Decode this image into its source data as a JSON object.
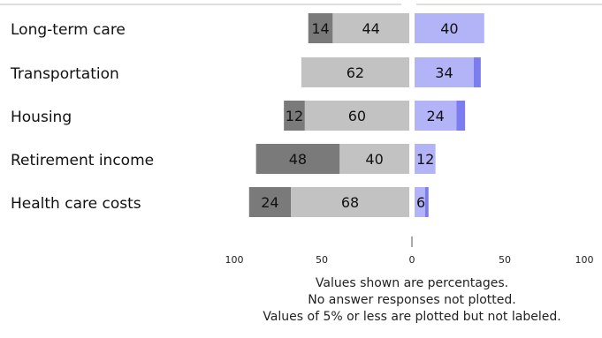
{
  "chart_data": {
    "type": "bar",
    "orientation": "horizontal",
    "layout": "diverging",
    "categories": [
      "Long-term care",
      "Transportation",
      "Housing",
      "Retirement income",
      "Health care costs"
    ],
    "series": [
      {
        "side": "left",
        "values": [
          14,
          0,
          12,
          48,
          24
        ],
        "color": "#7a7a7a"
      },
      {
        "side": "left",
        "values": [
          44,
          62,
          60,
          40,
          68
        ],
        "color": "#c2c2c2"
      },
      {
        "side": "right",
        "values": [
          40,
          34,
          24,
          12,
          6
        ],
        "color": "#b3b3f7"
      },
      {
        "side": "right",
        "values": [
          0,
          4,
          5,
          0,
          2
        ],
        "color": "#7c7cf1"
      }
    ],
    "axis": {
      "left_ticks": [
        "100",
        "50",
        "0"
      ],
      "right_ticks": [
        "50",
        "100"
      ],
      "range_left": [
        0,
        100
      ],
      "range_right": [
        0,
        100
      ]
    },
    "label_threshold": 5,
    "notes": [
      "Values shown are percentages.",
      "No answer responses not plotted.",
      "Values of 5% or less are plotted but not labeled."
    ],
    "grid": false
  }
}
